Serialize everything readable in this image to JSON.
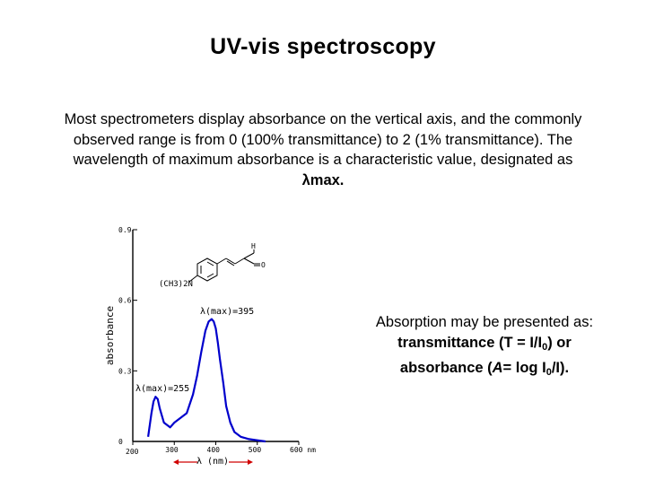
{
  "title": "UV-vis spectroscopy",
  "intro": {
    "text": "Most spectrometers display absorbance on the vertical axis, and the commonly observed range is from 0 (100% transmittance) to 2 (1% transmittance). The wavelength of maximum absorbance is a characteristic value, designated as ",
    "lambda_max": "λmax."
  },
  "side_note": {
    "line1": "Absorption may be presented as:",
    "transmittance_prefix": "transmittance (T = I/I",
    "transmittance_sub": "0",
    "transmittance_suffix": ") or",
    "absorbance_prefix": "absorbance (",
    "absorbance_var": "A",
    "absorbance_mid": "= log I",
    "absorbance_sub": "0",
    "absorbance_suffix": "/I)."
  },
  "chart_data": {
    "type": "line",
    "ylabel": "absorbance",
    "xlabel": "λ (nm)",
    "y_ticks": [
      "0.9",
      "0.6",
      "0.3",
      "0"
    ],
    "x_ticks": [
      "200",
      "300",
      "400",
      "500",
      "600 nm"
    ],
    "y_range": [
      0,
      0.9
    ],
    "x_range": [
      200,
      600
    ],
    "molecule": {
      "substituent": "(CH3)2N",
      "aldehyde_h": "H",
      "aldehyde_o": "O"
    },
    "annotations": [
      {
        "label": "λ(max)=395",
        "wavelength": 395,
        "absorbance": 0.5
      },
      {
        "label": "λ(max)=255",
        "wavelength": 255,
        "absorbance": 0.2
      }
    ],
    "series": [
      {
        "name": "absorbance",
        "x": [
          237,
          245,
          250,
          255,
          260,
          265,
          275,
          290,
          300,
          315,
          330,
          345,
          355,
          365,
          375,
          383,
          390,
          395,
          400,
          405,
          410,
          418,
          425,
          435,
          445,
          460,
          480,
          500,
          520
        ],
        "y": [
          0.02,
          0.12,
          0.17,
          0.19,
          0.18,
          0.14,
          0.08,
          0.06,
          0.08,
          0.1,
          0.12,
          0.2,
          0.28,
          0.38,
          0.47,
          0.51,
          0.52,
          0.51,
          0.48,
          0.42,
          0.35,
          0.25,
          0.15,
          0.08,
          0.04,
          0.02,
          0.01,
          0.005,
          0
        ]
      }
    ]
  }
}
